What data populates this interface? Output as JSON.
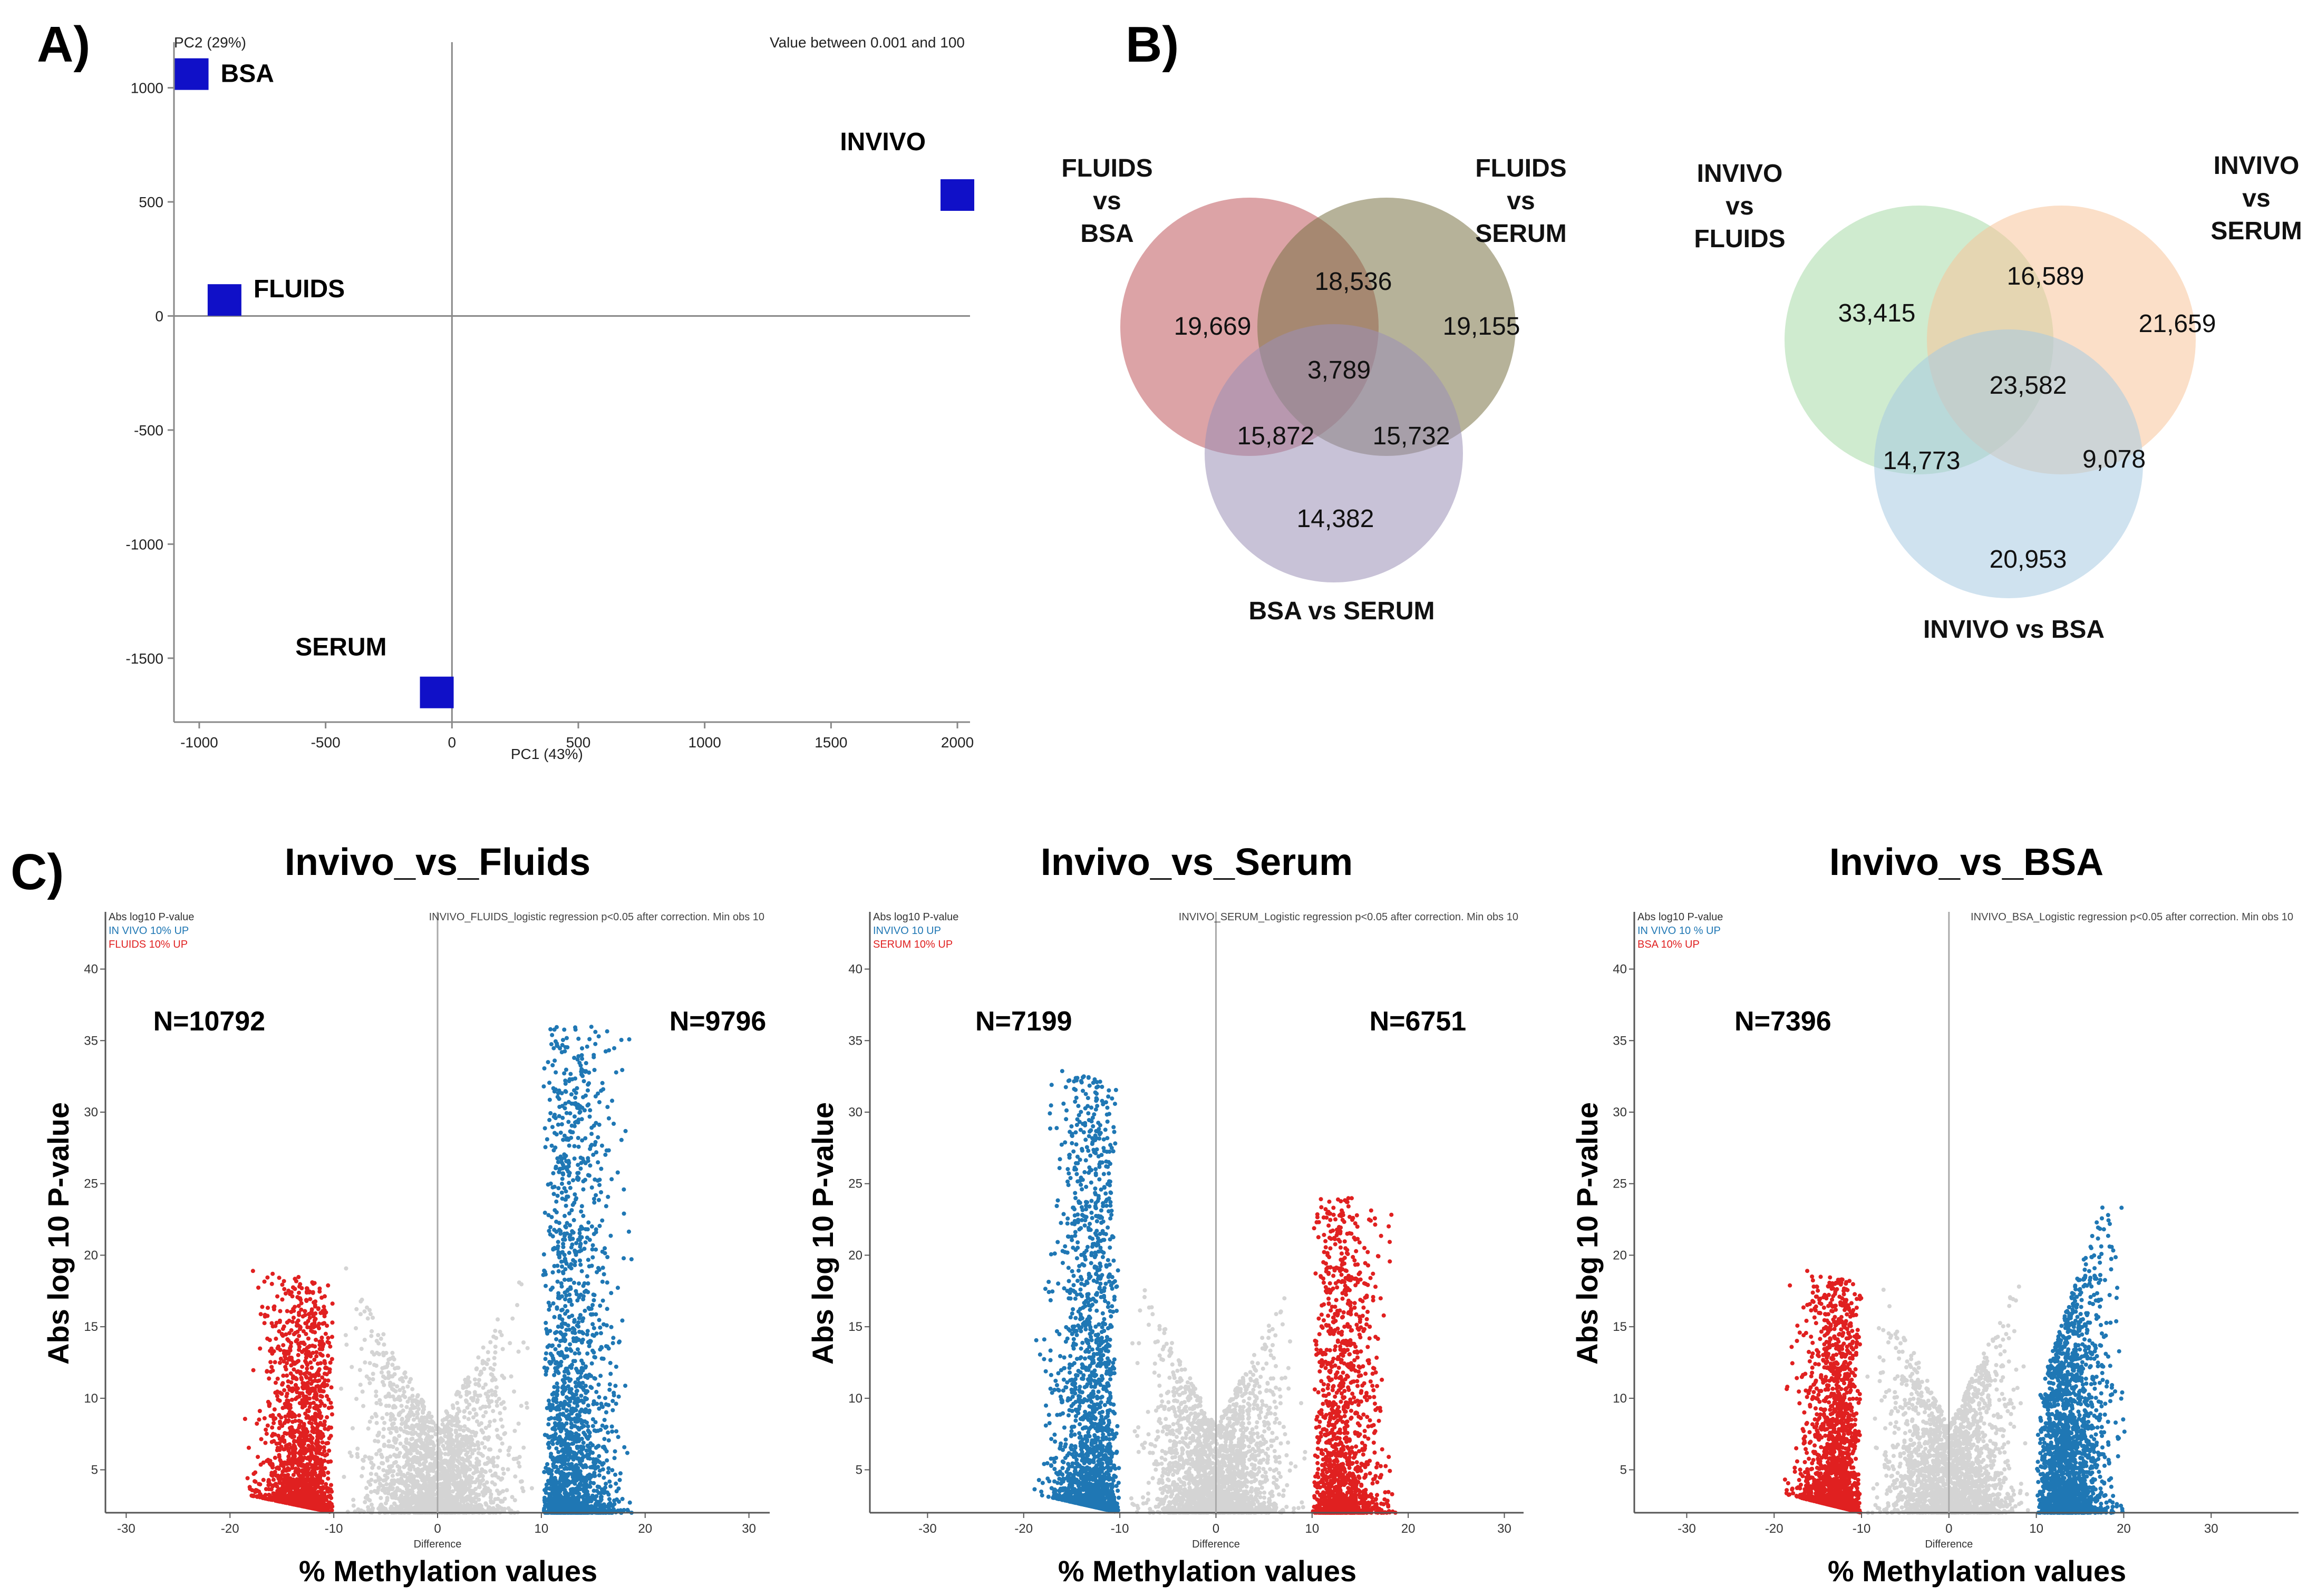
{
  "panels": {
    "a": "A)",
    "b": "B)",
    "c": "C)"
  },
  "pca": {
    "type": "scatter",
    "note": "Value between 0.001 and 100",
    "xlabel": "PC1 (43%)",
    "ylabel": "PC2 (29%)",
    "xlim": [
      -1100,
      2050
    ],
    "ylim": [
      -1780,
      1200
    ],
    "x_ticks": [
      -1000,
      -500,
      0,
      500,
      1000,
      1500,
      2000
    ],
    "y_ticks": [
      1000,
      500,
      0,
      -500,
      -1000,
      -1500
    ],
    "marker_color": "#1010c8",
    "points": [
      {
        "label": "BSA",
        "x": -1030,
        "y": 1060
      },
      {
        "label": "FLUIDS",
        "x": -900,
        "y": 70
      },
      {
        "label": "SERUM",
        "x": -60,
        "y": -1650
      },
      {
        "label": "INVIVO",
        "x": 2000,
        "y": 530
      }
    ]
  },
  "venn1": {
    "labels": {
      "top_left": [
        "FLUIDS",
        "vs",
        "BSA"
      ],
      "top_right": [
        "FLUIDS",
        "vs",
        "SERUM"
      ],
      "bottom": "BSA vs SERUM"
    },
    "colors": {
      "a": "#c0585c",
      "b": "#7a7245",
      "c": "#9b8fb6"
    },
    "values": {
      "only_a": "19,669",
      "ab": "18,536",
      "only_b": "19,155",
      "abc": "3,789",
      "ac": "15,872",
      "bc": "15,732",
      "only_c": "14,382"
    }
  },
  "venn2": {
    "labels": {
      "top_left": [
        "INVIVO",
        "vs",
        "FLUIDS"
      ],
      "top_right": [
        "INVIVO",
        "vs",
        "SERUM"
      ],
      "bottom": "INVIVO vs BSA"
    },
    "colors": {
      "a": "#a7dba7",
      "b": "#f8c49a",
      "c": "#a8cbe2"
    },
    "values": {
      "only_a": "33,415",
      "ab": "16,589",
      "only_b": "21,659",
      "abc": "23,582",
      "ac": "14,773",
      "bc": "9,078",
      "only_c": "20,953"
    }
  },
  "chart_data": [
    {
      "type": "scatter",
      "title": "Invivo_vs_Fluids",
      "xlabel": "% Methylation values",
      "ylabel": "Abs log 10 P-value",
      "axis_caption": "Difference",
      "header": "INVIVO_FLUIDS_logistic regression p<0.05 after correction. Min obs 10",
      "legend": [
        "Abs log10 P-value",
        "IN VIVO 10% UP",
        "FLUIDS 10% UP"
      ],
      "left_count": "N=10792",
      "right_count": "N=9796",
      "left_color": "#e02020",
      "right_color": "#1f77b4",
      "xlim": [
        -32,
        32
      ],
      "ylim": [
        2,
        44
      ],
      "x_ticks": [
        -30,
        -20,
        -10,
        0,
        10,
        20,
        30
      ],
      "y_ticks": [
        5,
        10,
        15,
        20,
        25,
        30,
        35,
        40
      ]
    },
    {
      "type": "scatter",
      "title": "Invivo_vs_Serum",
      "xlabel": "% Methylation values",
      "ylabel": "Abs log 10 P-value",
      "axis_caption": "Difference",
      "header": "INVIVO_SERUM_Logistic regression p<0.05 after correction. Min obs 10",
      "legend": [
        "Abs log10 P-value",
        "INVIVO 10 UP",
        "SERUM 10% UP"
      ],
      "left_count": "N=7199",
      "right_count": "N=6751",
      "left_color": "#1f77b4",
      "right_color": "#e02020",
      "xlim": [
        -36,
        32
      ],
      "ylim": [
        2,
        44
      ],
      "x_ticks": [
        -30,
        -20,
        -10,
        0,
        10,
        20,
        30
      ],
      "y_ticks": [
        5,
        10,
        15,
        20,
        25,
        30,
        35,
        40
      ]
    },
    {
      "type": "scatter",
      "title": "Invivo_vs_BSA",
      "xlabel": "% Methylation values",
      "ylabel": "Abs log 10 P-value",
      "axis_caption": "Difference",
      "header": "INVIVO_BSA_Logistic regression p<0.05 after correction. Min obs 10",
      "legend": [
        "Abs log10 P-value",
        "IN VIVO 10 % UP",
        "BSA 10% UP"
      ],
      "left_count": "N=7396",
      "right_count": "",
      "left_color": "#e02020",
      "right_color": "#1f77b4",
      "xlim": [
        -36,
        40
      ],
      "ylim": [
        2,
        44
      ],
      "x_ticks": [
        -30,
        -20,
        -10,
        0,
        10,
        20,
        30
      ],
      "y_ticks": [
        5,
        10,
        15,
        20,
        25,
        30,
        35,
        40
      ]
    }
  ]
}
